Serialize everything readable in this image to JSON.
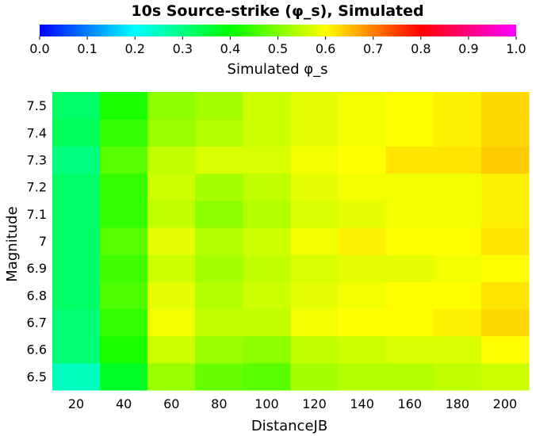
{
  "chart_data": {
    "type": "heatmap",
    "title": "10s Source-strike (φ_s), Simulated",
    "xlabel": "DistanceJB",
    "ylabel": "Magnitude",
    "colorbar": {
      "label": "Simulated φ_s",
      "min": 0.0,
      "max": 1.0,
      "ticks": [
        "0.0",
        "0.1",
        "0.2",
        "0.3",
        "0.4",
        "0.5",
        "0.6",
        "0.7",
        "0.8",
        "0.9",
        "1.0"
      ],
      "stops": [
        "#0000ff",
        "#00ffff",
        "#00ff00",
        "#ffff00",
        "#ff0000",
        "#ff00ff"
      ]
    },
    "x": [
      20,
      40,
      60,
      80,
      100,
      120,
      140,
      160,
      180,
      200
    ],
    "y": [
      6.5,
      6.6,
      6.7,
      6.8,
      6.9,
      7,
      7.1,
      7.2,
      7.3,
      7.4,
      7.5
    ],
    "x_tick_labels": [
      "20",
      "40",
      "60",
      "80",
      "100",
      "120",
      "140",
      "160",
      "180",
      "200"
    ],
    "y_tick_labels": [
      "6.5",
      "6.6",
      "6.7",
      "6.8",
      "6.9",
      "7",
      "7.1",
      "7.2",
      "7.3",
      "7.4",
      "7.5"
    ],
    "values": [
      [
        0.25,
        0.37,
        0.52,
        0.48,
        0.47,
        0.53,
        0.54,
        0.54,
        0.55,
        0.56
      ],
      [
        0.31,
        0.42,
        0.56,
        0.52,
        0.51,
        0.55,
        0.56,
        0.57,
        0.57,
        0.6
      ],
      [
        0.31,
        0.44,
        0.59,
        0.55,
        0.55,
        0.59,
        0.6,
        0.6,
        0.61,
        0.63
      ],
      [
        0.32,
        0.46,
        0.58,
        0.54,
        0.56,
        0.58,
        0.59,
        0.6,
        0.6,
        0.62
      ],
      [
        0.32,
        0.45,
        0.56,
        0.53,
        0.55,
        0.57,
        0.58,
        0.58,
        0.59,
        0.6
      ],
      [
        0.32,
        0.47,
        0.58,
        0.54,
        0.56,
        0.59,
        0.61,
        0.6,
        0.6,
        0.62
      ],
      [
        0.32,
        0.44,
        0.55,
        0.51,
        0.54,
        0.57,
        0.58,
        0.59,
        0.59,
        0.61
      ],
      [
        0.32,
        0.44,
        0.56,
        0.53,
        0.55,
        0.58,
        0.59,
        0.59,
        0.59,
        0.61
      ],
      [
        0.3,
        0.47,
        0.55,
        0.57,
        0.57,
        0.59,
        0.6,
        0.62,
        0.62,
        0.64
      ],
      [
        0.33,
        0.44,
        0.52,
        0.54,
        0.56,
        0.58,
        0.59,
        0.6,
        0.61,
        0.63
      ],
      [
        0.32,
        0.42,
        0.51,
        0.53,
        0.56,
        0.58,
        0.59,
        0.6,
        0.61,
        0.63
      ]
    ]
  }
}
